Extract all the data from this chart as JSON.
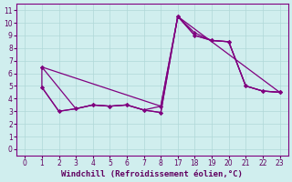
{
  "background_color": "#d0eeee",
  "line_color": "#800080",
  "marker": "D",
  "markersize": 2.0,
  "linewidth": 0.9,
  "xlabel": "Windchill (Refroidissement éolien,°C)",
  "xlabel_fontsize": 6.5,
  "tick_fontsize": 5.5,
  "xtick_labels": [
    "0",
    "1",
    "2",
    "3",
    "4",
    "5",
    "6",
    "7",
    "8",
    "17",
    "18",
    "19",
    "20",
    "21",
    "22",
    "23"
  ],
  "xtick_positions": [
    0,
    1,
    2,
    3,
    4,
    5,
    6,
    7,
    8,
    9,
    10,
    11,
    12,
    13,
    14,
    15
  ],
  "yticks": [
    0,
    1,
    2,
    3,
    4,
    5,
    6,
    7,
    8,
    9,
    10,
    11
  ],
  "xlim": [
    -0.5,
    15.5
  ],
  "ylim": [
    -0.5,
    11.5
  ],
  "series": [
    {
      "xi": [
        1,
        1,
        2,
        3,
        4,
        5,
        6,
        7,
        8,
        9,
        10,
        11,
        12,
        13,
        14,
        15
      ],
      "y": [
        6.5,
        4.9,
        3.0,
        3.2,
        3.5,
        3.4,
        3.5,
        3.1,
        2.9,
        10.5,
        9.2,
        8.6,
        8.5,
        5.0,
        4.6,
        4.5
      ]
    },
    {
      "xi": [
        1,
        2,
        3,
        4,
        5,
        6,
        7,
        8,
        9,
        10,
        11,
        12,
        13,
        14,
        15
      ],
      "y": [
        4.9,
        3.0,
        3.2,
        3.5,
        3.4,
        3.5,
        3.1,
        2.9,
        10.5,
        9.0,
        8.6,
        8.5,
        5.0,
        4.6,
        4.5
      ]
    },
    {
      "xi": [
        1,
        8,
        9,
        15
      ],
      "y": [
        6.5,
        3.4,
        10.5,
        4.5
      ]
    },
    {
      "xi": [
        1,
        3,
        4,
        5,
        6,
        7,
        8,
        9,
        10,
        11,
        12,
        13,
        14,
        15
      ],
      "y": [
        6.5,
        3.2,
        3.5,
        3.4,
        3.5,
        3.1,
        3.4,
        10.5,
        9.0,
        8.6,
        8.5,
        5.0,
        4.6,
        4.5
      ]
    }
  ]
}
